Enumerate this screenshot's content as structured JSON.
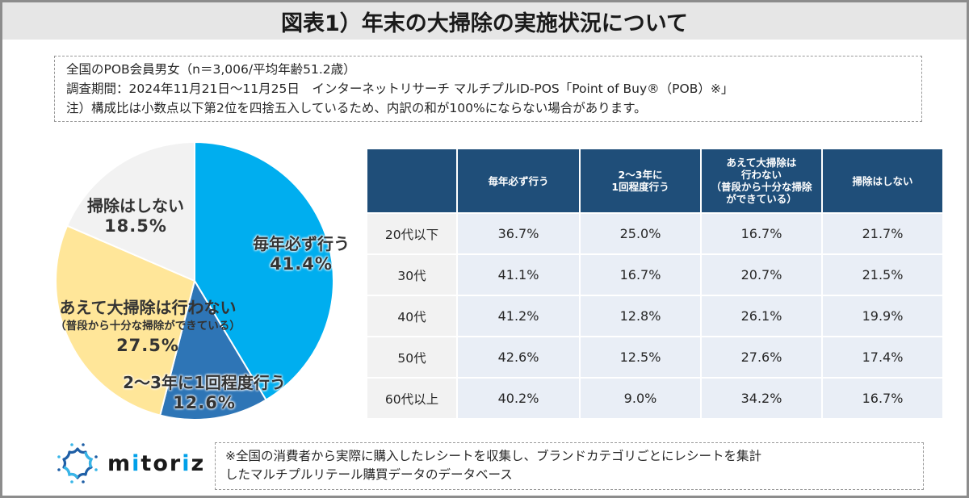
{
  "title": "図表1）年末の大掃除の実施状況について",
  "info": {
    "line1": "全国のPOB会員男女（n＝3,006/平均年齢51.2歳）",
    "line2": "調査期間：2024年11月21日〜11月25日　インターネットリサーチ マルチプルID-POS「Point of Buy®（POB）※」",
    "line3": "注）構成比は小数点以下第2位を四捨五入しているため、内訳の和が100%にならない場合があります。"
  },
  "colors": {
    "every_year": "#00aeef",
    "every_2_3_years": "#2e75b6",
    "not_doing_big_cleaning": "#ffe699",
    "no_cleaning": "#f2f2f2",
    "table_header": "#1f4e79"
  },
  "chart_data": [
    {
      "type": "pie",
      "title": "",
      "start_angle": "12 o'clock, clockwise",
      "slices": [
        {
          "label": "毎年必ず行う",
          "sublabel": "",
          "value": 41.4,
          "display": "41.4%",
          "color": "#00aeef"
        },
        {
          "label": "2〜3年に1回程度行う",
          "sublabel": "",
          "value": 12.6,
          "display": "12.6%",
          "color": "#2e75b6"
        },
        {
          "label": "あえて大掃除は行わない",
          "sublabel": "（普段から十分な掃除ができている）",
          "value": 27.5,
          "display": "27.5%",
          "color": "#ffe699"
        },
        {
          "label": "掃除はしない",
          "sublabel": "",
          "value": 18.5,
          "display": "18.5%",
          "color": "#f2f2f2"
        }
      ]
    },
    {
      "type": "table",
      "columns": [
        "",
        "毎年必ず行う",
        "2〜3年に\n1回程度行う",
        "あえて大掃除は\n行わない\n（普段から十分な掃除\nができている）",
        "掃除はしない"
      ],
      "rows": [
        {
          "label": "20代以下",
          "values": [
            "36.7%",
            "25.0%",
            "16.7%",
            "21.7%"
          ]
        },
        {
          "label": "30代",
          "values": [
            "41.1%",
            "16.7%",
            "20.7%",
            "21.5%"
          ]
        },
        {
          "label": "40代",
          "values": [
            "41.2%",
            "12.8%",
            "26.1%",
            "19.9%"
          ]
        },
        {
          "label": "50代",
          "values": [
            "42.6%",
            "12.5%",
            "27.6%",
            "17.4%"
          ]
        },
        {
          "label": "60代以上",
          "values": [
            "40.2%",
            "9.0%",
            "34.2%",
            "16.7%"
          ]
        }
      ]
    }
  ],
  "table": {
    "headers": [
      "",
      "毎年必ず行う",
      "2〜3年に\n1回程度行う",
      "あえて大掃除は\n行わない\n（普段から十分な掃除\nができている）",
      "掃除はしない"
    ],
    "rows": [
      {
        "label": "20代以下",
        "values": [
          "36.7%",
          "25.0%",
          "16.7%",
          "21.7%"
        ]
      },
      {
        "label": "30代",
        "values": [
          "41.1%",
          "16.7%",
          "20.7%",
          "21.5%"
        ]
      },
      {
        "label": "40代",
        "values": [
          "41.2%",
          "12.8%",
          "26.1%",
          "19.9%"
        ]
      },
      {
        "label": "50代",
        "values": [
          "42.6%",
          "12.5%",
          "27.6%",
          "17.4%"
        ]
      },
      {
        "label": "60代以上",
        "values": [
          "40.2%",
          "9.0%",
          "34.2%",
          "16.7%"
        ]
      }
    ]
  },
  "logo": {
    "icon": "mitoriz-logo-icon",
    "wordmark_pre": "m",
    "wordmark_i1": "i",
    "wordmark_mid": "tor",
    "wordmark_i2": "i",
    "wordmark_post": "z"
  },
  "footnote": {
    "line1": "※全国の消費者から実際に購入したレシートを収集し、ブランドカテゴリごとにレシートを集計",
    "line2": "したマルチプルリテール購買データのデータベース"
  }
}
